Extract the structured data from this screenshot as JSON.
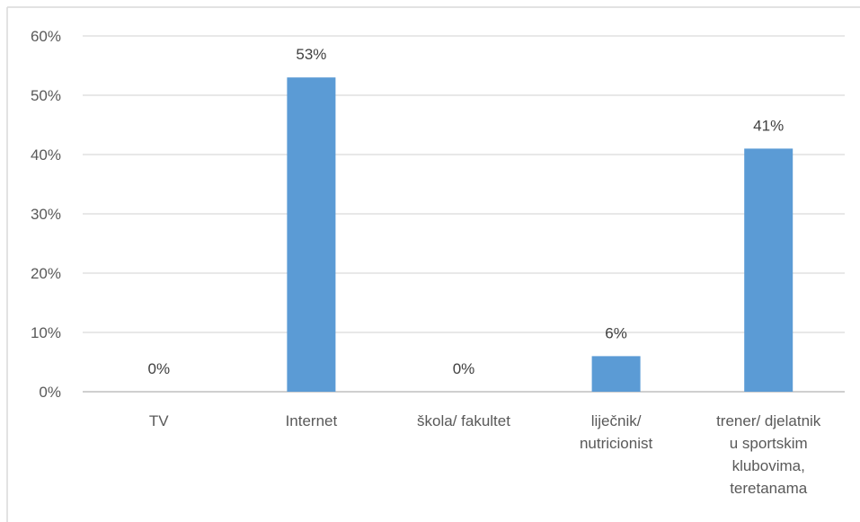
{
  "chart_data": {
    "type": "bar",
    "categories": [
      [
        "TV"
      ],
      [
        "Internet"
      ],
      [
        "škola/ fakultet"
      ],
      [
        "liječnik/",
        "nutricionist"
      ],
      [
        "trener/ djelatnik",
        "u sportskim",
        "klubovima,",
        "teretanama"
      ]
    ],
    "values": [
      0,
      53,
      0,
      6,
      41
    ],
    "data_labels": [
      "0%",
      "53%",
      "0%",
      "6%",
      "41%"
    ],
    "y_ticks": [
      "0%",
      "10%",
      "20%",
      "30%",
      "40%",
      "50%",
      "60%"
    ],
    "ylim": [
      0,
      60
    ],
    "y_unit": "%",
    "grid": true,
    "legend": "none",
    "bar_color": "#5b9bd5"
  }
}
